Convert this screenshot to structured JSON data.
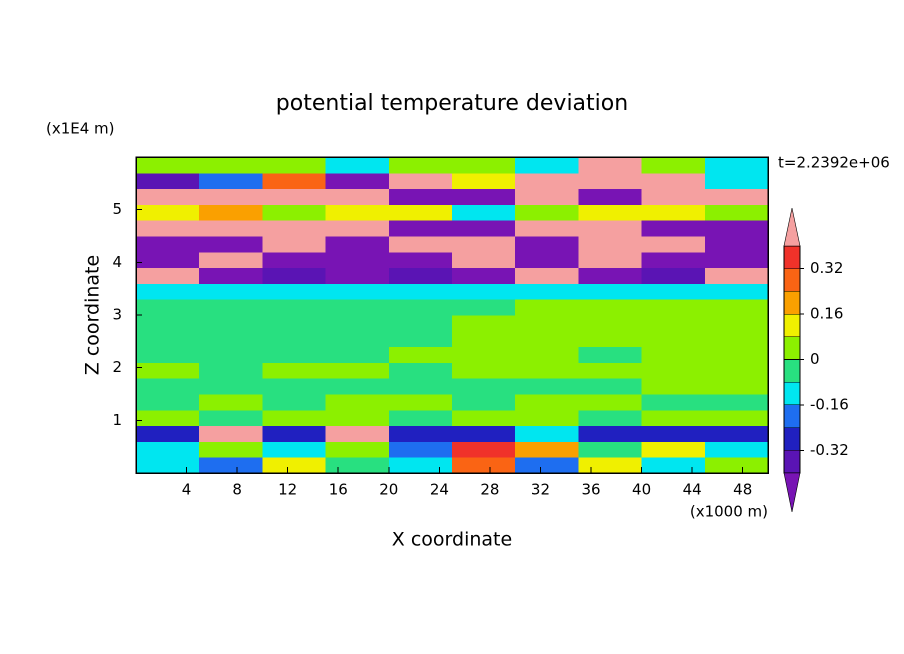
{
  "chart_data": {
    "type": "contour",
    "title": "potential temperature deviation",
    "x_label": "X coordinate",
    "y_label": "Z coordinate",
    "x_unit": "(x1000 m)",
    "y_unit": "(x1E4 m)",
    "annotation": "t=2.2392e+06",
    "xlim": [
      0,
      50
    ],
    "ylim": [
      0,
      6
    ],
    "xticks": [
      4,
      8,
      12,
      16,
      20,
      24,
      28,
      32,
      36,
      40,
      44,
      48
    ],
    "yticks": [
      1,
      2,
      3,
      4,
      5
    ],
    "x": [
      2.5,
      7.5,
      12.5,
      17.5,
      22.5,
      27.5,
      32.5,
      37.5,
      42.5,
      47.5
    ],
    "y": [
      0.15,
      0.45,
      0.75,
      1.05,
      1.35,
      1.65,
      1.95,
      2.25,
      2.55,
      2.85,
      3.15,
      3.45,
      3.75,
      4.05,
      4.35,
      4.65,
      4.95,
      5.25,
      5.55,
      5.85
    ],
    "z": [
      [
        -0.1,
        -0.2,
        0.1,
        -0.05,
        -0.1,
        0.3,
        -0.2,
        0.1,
        -0.1,
        0.05
      ],
      [
        -0.1,
        0.05,
        -0.12,
        0.02,
        -0.2,
        0.35,
        0.2,
        -0.05,
        0.15,
        -0.1
      ],
      [
        -0.3,
        0.45,
        -0.3,
        0.45,
        -0.3,
        -0.3,
        -0.1,
        -0.3,
        -0.3,
        -0.3
      ],
      [
        0.03,
        -0.02,
        0.03,
        0.03,
        -0.02,
        0.03,
        0.03,
        -0.02,
        0.03,
        0.03
      ],
      [
        -0.03,
        0.03,
        -0.03,
        0.03,
        0.03,
        -0.03,
        0.03,
        0.03,
        -0.03,
        -0.03
      ],
      [
        -0.03,
        -0.03,
        -0.03,
        -0.03,
        -0.03,
        -0.03,
        -0.03,
        -0.03,
        0.03,
        0.03
      ],
      [
        0.03,
        -0.03,
        0.03,
        0.03,
        -0.03,
        0.03,
        0.03,
        0.03,
        0.03,
        0.03
      ],
      [
        -0.03,
        -0.03,
        -0.03,
        -0.03,
        0.03,
        0.03,
        0.03,
        -0.03,
        0.03,
        0.03
      ],
      [
        -0.03,
        -0.03,
        -0.03,
        -0.03,
        -0.03,
        0.03,
        0.03,
        0.03,
        0.03,
        0.03
      ],
      [
        -0.03,
        -0.03,
        -0.03,
        -0.03,
        -0.03,
        0.03,
        0.03,
        0.03,
        0.03,
        0.03
      ],
      [
        -0.03,
        -0.03,
        -0.03,
        -0.03,
        -0.03,
        -0.03,
        0.03,
        0.03,
        0.03,
        0.03
      ],
      [
        -0.12,
        -0.12,
        -0.1,
        -0.1,
        -0.1,
        -0.1,
        -0.1,
        -0.1,
        -0.1,
        -0.12
      ],
      [
        0.45,
        -0.45,
        -0.35,
        -0.45,
        -0.35,
        -0.45,
        0.45,
        -0.45,
        -0.35,
        0.45
      ],
      [
        -0.45,
        0.45,
        -0.45,
        -0.45,
        -0.45,
        0.45,
        -0.45,
        0.45,
        -0.45,
        -0.45
      ],
      [
        -0.45,
        -0.45,
        0.45,
        -0.45,
        0.45,
        0.45,
        -0.45,
        0.45,
        0.45,
        -0.45
      ],
      [
        0.45,
        0.45,
        0.45,
        0.45,
        -0.45,
        -0.45,
        0.45,
        0.45,
        -0.45,
        -0.45
      ],
      [
        0.1,
        0.2,
        0.05,
        0.1,
        0.1,
        -0.1,
        0.05,
        0.1,
        0.1,
        0.05
      ],
      [
        0.45,
        0.45,
        0.45,
        0.45,
        -0.45,
        -0.45,
        0.45,
        -0.45,
        0.45,
        0.45
      ],
      [
        -0.35,
        -0.2,
        0.3,
        -0.45,
        0.45,
        0.1,
        0.45,
        0.45,
        0.45,
        -0.1
      ],
      [
        0.03,
        0.03,
        0.03,
        -0.1,
        0.03,
        0.03,
        -0.1,
        0.45,
        0.03,
        -0.12
      ]
    ],
    "levels": [
      -0.4,
      -0.32,
      -0.24,
      -0.16,
      -0.08,
      0,
      0.08,
      0.16,
      0.24,
      0.32,
      0.4
    ],
    "colorbar_ticks": [
      0.32,
      0.16,
      0,
      -0.16,
      -0.32
    ],
    "colors": [
      "#7814b4",
      "#5a14b4",
      "#2020c0",
      "#1e6ef0",
      "#00e6f0",
      "#28e080",
      "#8cf000",
      "#f0f000",
      "#faa000",
      "#fa6414",
      "#f0322a",
      "#f5a0a0"
    ]
  }
}
